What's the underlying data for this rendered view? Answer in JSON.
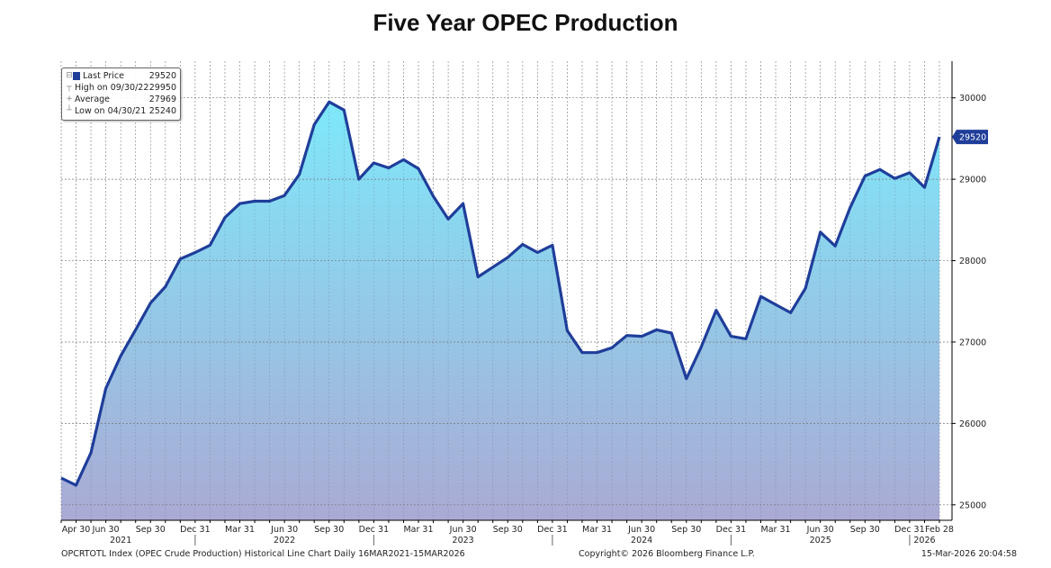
{
  "title": "Five Year OPEC Production",
  "chart_data": {
    "type": "area",
    "title": "Five Year OPEC Production",
    "xlabel": "",
    "ylabel": "",
    "x": [
      "2021-03",
      "2021-04",
      "2021-05",
      "2021-06",
      "2021-07",
      "2021-08",
      "2021-09",
      "2021-10",
      "2021-11",
      "2021-12",
      "2022-01",
      "2022-02",
      "2022-03",
      "2022-04",
      "2022-05",
      "2022-06",
      "2022-07",
      "2022-08",
      "2022-09",
      "2022-10",
      "2022-11",
      "2022-12",
      "2023-01",
      "2023-02",
      "2023-03",
      "2023-04",
      "2023-05",
      "2023-06",
      "2023-07",
      "2023-08",
      "2023-09",
      "2023-10",
      "2023-11",
      "2023-12",
      "2024-01",
      "2024-02",
      "2024-03",
      "2024-04",
      "2024-05",
      "2024-06",
      "2024-07",
      "2024-08",
      "2024-09",
      "2024-10",
      "2024-11",
      "2024-12",
      "2025-01",
      "2025-02",
      "2025-03",
      "2025-04",
      "2025-05",
      "2025-06",
      "2025-07",
      "2025-08",
      "2025-09",
      "2025-10",
      "2025-11",
      "2025-12",
      "2026-01",
      "2026-02"
    ],
    "series": [
      {
        "name": "Last Price",
        "color": "#1f3e9a",
        "values": [
          25330,
          25240,
          25640,
          26430,
          26830,
          27150,
          27480,
          27680,
          28020,
          28100,
          28190,
          28530,
          28700,
          28730,
          28730,
          28800,
          29060,
          29670,
          29950,
          29850,
          29000,
          29200,
          29140,
          29240,
          29130,
          28790,
          28510,
          28700,
          27800,
          27920,
          28040,
          28200,
          28100,
          28190,
          27140,
          26870,
          26870,
          26930,
          27080,
          27070,
          27150,
          27110,
          26550,
          26940,
          27390,
          27070,
          27040,
          27560,
          27460,
          27360,
          27660,
          28350,
          28180,
          28650,
          29040,
          29120,
          29010,
          29080,
          28900,
          29520
        ]
      }
    ],
    "ylim": [
      24810,
      30450
    ],
    "yticks": [
      25000,
      26000,
      27000,
      28000,
      29000,
      30000
    ],
    "ytick_labels": [
      "25000",
      "26000",
      "27000",
      "28000",
      "29000",
      "30000"
    ],
    "xticks": [
      {
        "at": "2021-04",
        "label": "Apr 30"
      },
      {
        "at": "2021-06",
        "label": "Jun 30"
      },
      {
        "at": "2021-09",
        "label": "Sep 30"
      },
      {
        "at": "2021-12",
        "label": "Dec 31"
      },
      {
        "at": "2022-03",
        "label": "Mar 31"
      },
      {
        "at": "2022-06",
        "label": "Jun 30"
      },
      {
        "at": "2022-09",
        "label": "Sep 30"
      },
      {
        "at": "2022-12",
        "label": "Dec 31"
      },
      {
        "at": "2023-03",
        "label": "Mar 31"
      },
      {
        "at": "2023-06",
        "label": "Jun 30"
      },
      {
        "at": "2023-09",
        "label": "Sep 30"
      },
      {
        "at": "2023-12",
        "label": "Dec 31"
      },
      {
        "at": "2024-03",
        "label": "Mar 31"
      },
      {
        "at": "2024-06",
        "label": "Jun 30"
      },
      {
        "at": "2024-09",
        "label": "Sep 30"
      },
      {
        "at": "2024-12",
        "label": "Dec 31"
      },
      {
        "at": "2025-03",
        "label": "Mar 31"
      },
      {
        "at": "2025-06",
        "label": "Jun 30"
      },
      {
        "at": "2025-09",
        "label": "Sep 30"
      },
      {
        "at": "2025-12",
        "label": "Dec 31"
      },
      {
        "at": "2026-02",
        "label": "Feb 28"
      }
    ],
    "year_labels": [
      {
        "at": "2021-07",
        "label": "2021"
      },
      {
        "at": "2022-06",
        "label": "2022"
      },
      {
        "at": "2023-06",
        "label": "2023"
      },
      {
        "at": "2024-06",
        "label": "2024"
      },
      {
        "at": "2025-06",
        "label": "2025"
      },
      {
        "at": "2026-01",
        "label": "2026"
      }
    ],
    "year_separators": [
      "2021-12",
      "2022-12",
      "2023-12",
      "2024-12",
      "2025-12"
    ],
    "last_price_marker": "29520",
    "grid": true,
    "gradient": {
      "top": "#7ee8fa",
      "bottom": "#aaaad4"
    },
    "legend": {
      "placement": "top-left",
      "items": [
        {
          "label": "Last Price",
          "value": "29520"
        },
        {
          "label": "High on 09/30/22",
          "value": "29950"
        },
        {
          "label": "Average",
          "value": "27969"
        },
        {
          "label": "Low on 04/30/21",
          "value": "25240"
        }
      ]
    }
  },
  "footer": {
    "source": "OPCRTOTL Index (OPEC Crude Production) Historical Line Chart Daily 16MAR2021-15MAR2026",
    "copyright": "Copyright© 2026 Bloomberg Finance L.P.",
    "timestamp": "15-Mar-2026 20:04:58"
  }
}
